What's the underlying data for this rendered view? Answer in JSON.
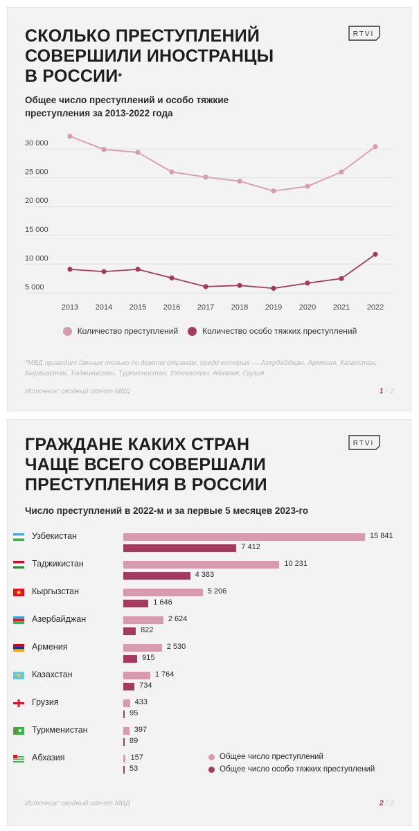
{
  "card1": {
    "title_lines": [
      "СКОЛЬКО ПРЕСТУПЛЕНИЙ",
      "СОВЕРШИЛИ ИНОСТРАНЦЫ",
      "В РОССИИ"
    ],
    "title_asterisk": "*",
    "logo": "RTVI",
    "subtitle_lines": [
      "Общее число преступлений и особо тяжкие",
      "преступления за 2013-2022 года"
    ],
    "legend": [
      "Количество преступлений",
      "Количество особо тяжких преступлений"
    ],
    "footnote": "*МВД приводит данные только по девяти странам, среди которых — Азербайджан, Армения, Казахстан, Кыргызстан, Таджикистан, Туркменистан, Узбекистан, Абхазия, Грузия",
    "source": "Источник: сводный отчет МВД",
    "page_current": "1",
    "page_total": " / 2"
  },
  "card2": {
    "title_lines": [
      "ГРАЖДАНЕ КАКИХ СТРАН",
      "ЧАЩЕ ВСЕГО СОВЕРШАЛИ",
      "ПРЕСТУПЛЕНИЯ В РОССИИ"
    ],
    "logo": "RTVI",
    "subtitle": "Число преступлений в 2022-м и за первые 5 месяцев 2023-го",
    "legend": [
      "Общее число преступлений",
      "Общее число особо тяжких преступлений"
    ],
    "source": "Источник: сводный отчет МВД",
    "page_current": "2",
    "page_total": " / 2"
  },
  "colors": {
    "light": "#d79aae",
    "dark": "#a53a5f",
    "grid": "#e0e0e0"
  },
  "chart_data": [
    {
      "type": "line",
      "title": "Общее число преступлений и особо тяжкие преступления за 2013-2022 года",
      "x": [
        "2013",
        "2014",
        "2015",
        "2016",
        "2017",
        "2018",
        "2019",
        "2020",
        "2021",
        "2022"
      ],
      "series": [
        {
          "name": "Количество преступлений",
          "color": "#d79aae",
          "values": [
            32200,
            29900,
            29400,
            26000,
            25100,
            24400,
            22700,
            23500,
            26000,
            30400
          ]
        },
        {
          "name": "Количество особо тяжких преступлений",
          "color": "#a53a5f",
          "values": [
            9100,
            8700,
            9100,
            7600,
            6100,
            6300,
            5800,
            6700,
            7500,
            11700
          ]
        }
      ],
      "yticks": [
        5000,
        10000,
        15000,
        20000,
        25000,
        30000
      ],
      "ytick_labels": [
        "5 000",
        "10 000",
        "15 000",
        "20 000",
        "25 000",
        "30 000"
      ],
      "ylim": [
        5000,
        32500
      ],
      "grid": true,
      "legend_position": "bottom"
    },
    {
      "type": "bar",
      "orientation": "horizontal",
      "title": "Число преступлений в 2022-м и за первые 5 месяцев 2023-го",
      "categories": [
        "Узбекистан",
        "Таджикистан",
        "Кыргызстан",
        "Азербайджан",
        "Армения",
        "Казахстан",
        "Грузия",
        "Туркменистан",
        "Абхазия"
      ],
      "series": [
        {
          "name": "Общее число преступлений",
          "color": "#d79aae",
          "values": [
            15841,
            10231,
            5206,
            2624,
            2530,
            1764,
            433,
            397,
            157
          ],
          "labels": [
            "15 841",
            "10 231",
            "5 206",
            "2 624",
            "2 530",
            "1 764",
            "433",
            "397",
            "157"
          ]
        },
        {
          "name": "Общее число особо тяжких преступлений",
          "color": "#a53a5f",
          "values": [
            7412,
            4383,
            1646,
            822,
            915,
            734,
            95,
            89,
            53
          ],
          "labels": [
            "7 412",
            "4 383",
            "1 646",
            "822",
            "915",
            "734",
            "95",
            "89",
            "53"
          ]
        }
      ],
      "legend_position": "bottom-right"
    }
  ]
}
